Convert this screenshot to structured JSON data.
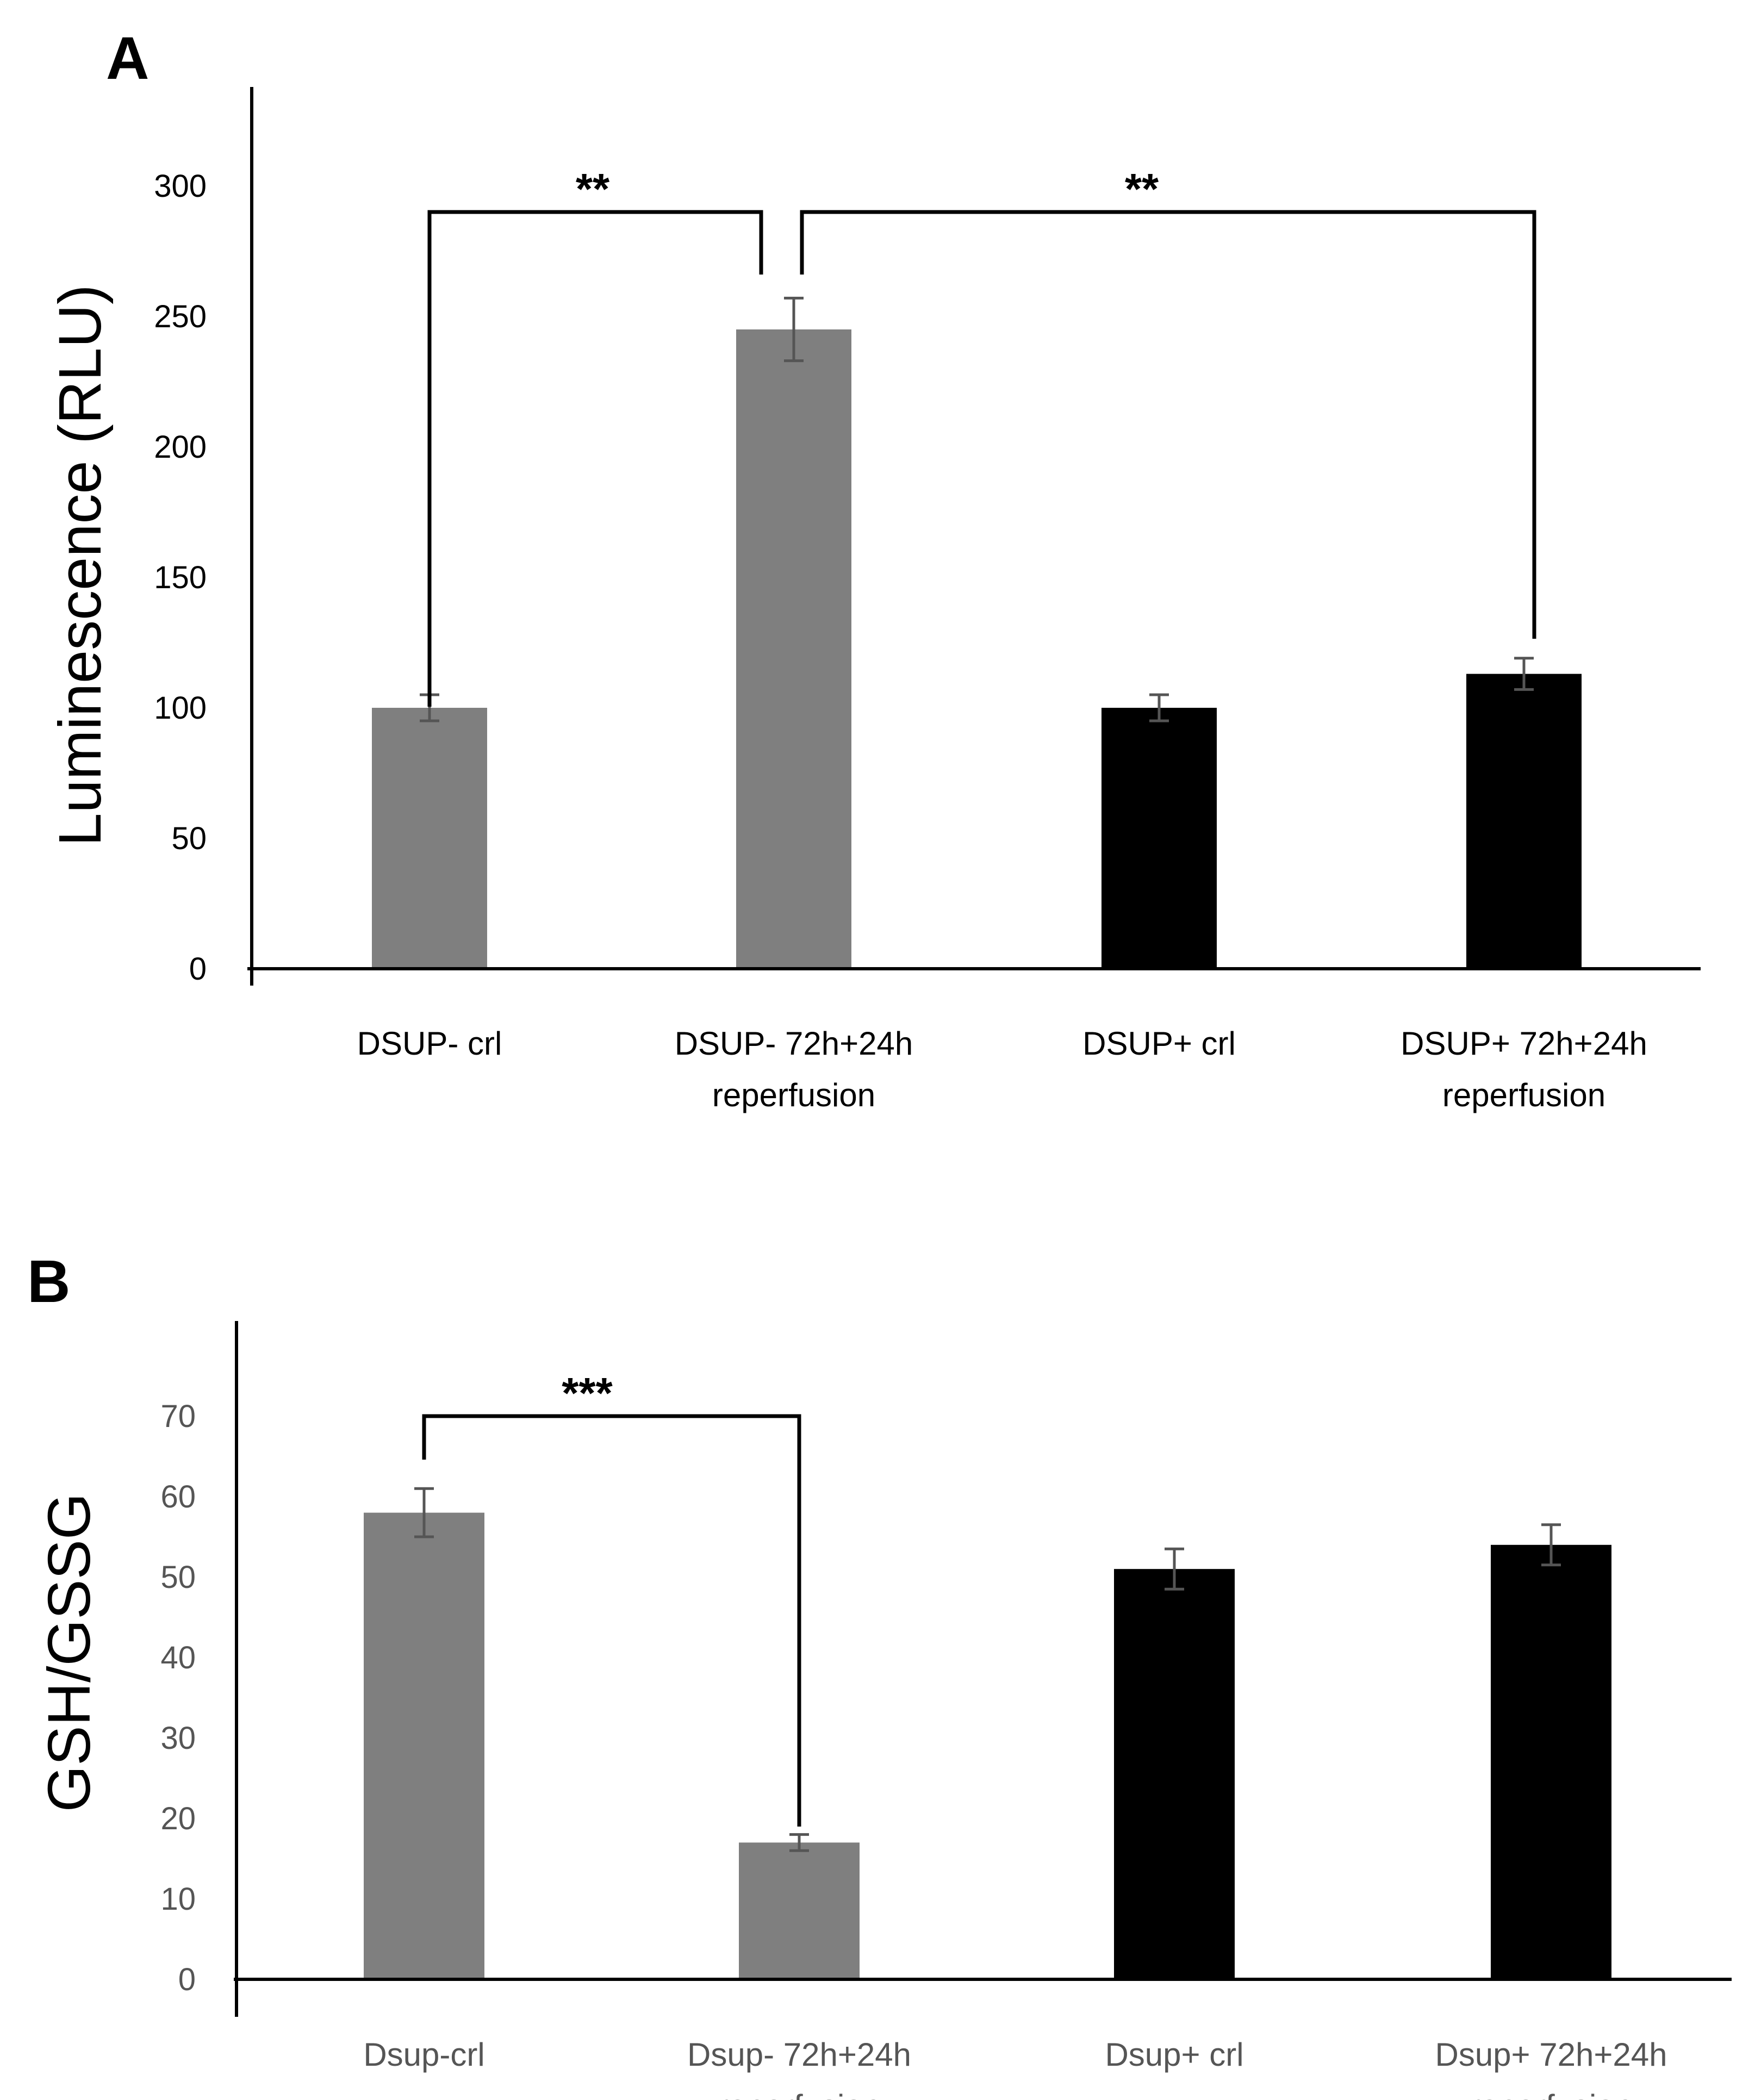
{
  "chart_data": [
    {
      "type": "bar",
      "panel_label": "A",
      "ylabel": "Luminescence (RLU)",
      "xlabel": "",
      "ylim": [
        0,
        330
      ],
      "yticks": [
        "0",
        "50",
        "100",
        "150",
        "200",
        "250",
        "300"
      ],
      "categories": [
        [
          "DSUP- crl"
        ],
        [
          "DSUP- 72h+24h",
          "reperfusion"
        ],
        [
          "DSUP+ crl"
        ],
        [
          "DSUP+ 72h+24h",
          "reperfusion"
        ]
      ],
      "values": [
        100,
        245,
        100,
        113
      ],
      "errors": [
        5,
        12,
        5,
        6
      ],
      "colors": [
        "#7f7f7f",
        "#7f7f7f",
        "#000000",
        "#000000"
      ],
      "significance": [
        {
          "from": 0,
          "to": 1,
          "label": "**",
          "y": 290
        },
        {
          "from": 1,
          "to": 3,
          "label": "**",
          "y": 290
        }
      ]
    },
    {
      "type": "bar",
      "panel_label": "B",
      "ylabel": "GSH/GSSG",
      "xlabel": "",
      "ylim": [
        0,
        80
      ],
      "yticks": [
        "0",
        "10",
        "20",
        "30",
        "40",
        "50",
        "60",
        "70"
      ],
      "categories": [
        [
          "Dsup-crl"
        ],
        [
          "Dsup- 72h+24h",
          "reperfusion"
        ],
        [
          "Dsup+ crl"
        ],
        [
          "Dsup+ 72h+24h",
          "reperfusion"
        ]
      ],
      "values": [
        58,
        17,
        51,
        54
      ],
      "errors": [
        3,
        1,
        2.5,
        2.5
      ],
      "colors": [
        "#7f7f7f",
        "#7f7f7f",
        "#000000",
        "#000000"
      ],
      "significance": [
        {
          "from": 0,
          "to": 1,
          "label": "***",
          "y": 70
        }
      ]
    }
  ]
}
